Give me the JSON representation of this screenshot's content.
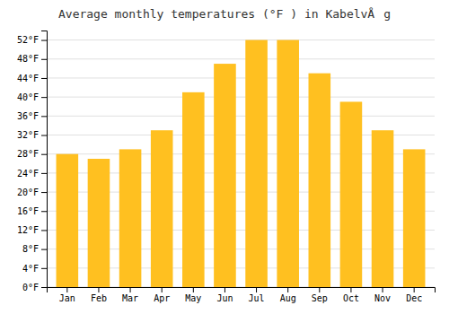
{
  "chart_data": {
    "type": "bar",
    "title": "Average monthly temperatures (°F ) in KabelvÅg",
    "categories": [
      "Jan",
      "Feb",
      "Mar",
      "Apr",
      "May",
      "Jun",
      "Jul",
      "Aug",
      "Sep",
      "Oct",
      "Nov",
      "Dec"
    ],
    "values": [
      28,
      27,
      29,
      33,
      41,
      47,
      52,
      52,
      45,
      39,
      33,
      29
    ],
    "color": "#FFC020",
    "ylim": [
      0,
      54
    ],
    "yticks": [
      {
        "value": 0,
        "label": "0°F"
      },
      {
        "value": 4,
        "label": "4°F"
      },
      {
        "value": 8,
        "label": "8°F"
      },
      {
        "value": 12,
        "label": "12°F"
      },
      {
        "value": 16,
        "label": "16°F"
      },
      {
        "value": 20,
        "label": "20°F"
      },
      {
        "value": 24,
        "label": "24°F"
      },
      {
        "value": 28,
        "label": "28°F"
      },
      {
        "value": 32,
        "label": "32°F"
      },
      {
        "value": 36,
        "label": "36°F"
      },
      {
        "value": 40,
        "label": "40°F"
      },
      {
        "value": 44,
        "label": "44°F"
      },
      {
        "value": 48,
        "label": "48°F"
      },
      {
        "value": 52,
        "label": "52°F"
      }
    ],
    "grid": true
  }
}
